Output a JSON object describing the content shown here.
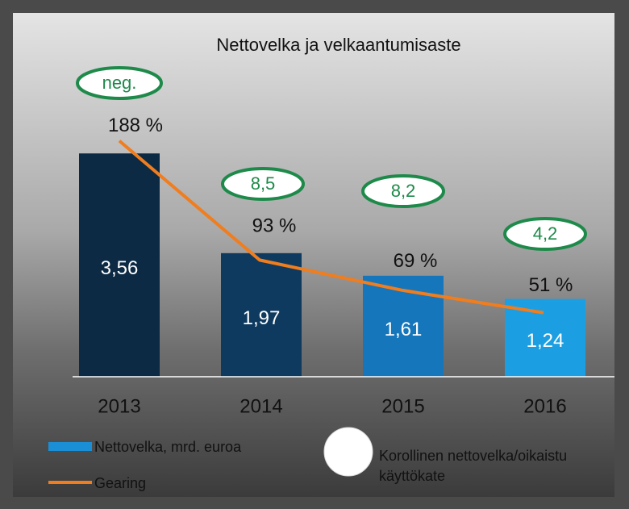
{
  "chart_data": {
    "type": "bar_line",
    "title": "Nettovelka ja velkaantumisaste",
    "categories": [
      "2013",
      "2014",
      "2015",
      "2016"
    ],
    "ylim": [
      0,
      4
    ],
    "y2lim": [
      0,
      200
    ],
    "series": [
      {
        "name": "Nettovelka, mrd. euroa",
        "type": "bar",
        "colors": [
          "#0c2a44",
          "#0f3a5f",
          "#1676bb",
          "#1c9fe2"
        ],
        "color": "#1a8fd6",
        "values": [
          3.56,
          1.97,
          1.61,
          1.24
        ],
        "value_labels": [
          "3,56",
          "1,97",
          "1,61",
          "1,24"
        ]
      },
      {
        "name": "Gearing",
        "type": "line",
        "axis": "y2",
        "color": "#f07d1e",
        "values": [
          188,
          93,
          69,
          51
        ],
        "value_labels": [
          "188 %",
          "93 %",
          "69 %",
          "51 %"
        ]
      }
    ],
    "annotations": [
      "neg.",
      "8,5",
      "8,2",
      "4,2"
    ],
    "annotation_legend": [
      "Korollinen nettovelka/oikaistu",
      "käyttökate"
    ],
    "annotation_color": "#1e8a4a"
  }
}
